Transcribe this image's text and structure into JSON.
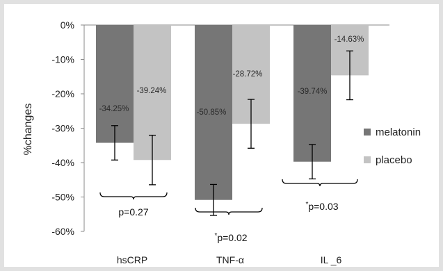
{
  "chart_data": {
    "type": "bar",
    "title": "",
    "xlabel": "",
    "ylabel": "%changes",
    "ylim": [
      -60,
      0
    ],
    "yticks": [
      0,
      -10,
      -20,
      -30,
      -40,
      -50,
      -60
    ],
    "ytick_labels": [
      "0%",
      "-10%",
      "-20%",
      "-30%",
      "-40%",
      "-50%",
      "-60%"
    ],
    "categories": [
      "hsCRP",
      "TNF-α",
      "IL _6"
    ],
    "series": [
      {
        "name": "melatonin",
        "color": "#767676",
        "values": [
          -34.25,
          -50.85,
          -39.74
        ],
        "labels": [
          "-34.25%",
          "-50.85%",
          "-39.74%"
        ],
        "error": [
          5,
          4.5,
          5
        ]
      },
      {
        "name": "placebo",
        "color": "#c3c3c3",
        "values": [
          -39.24,
          -28.72,
          -14.63
        ],
        "labels": [
          "-39.24%",
          "-28.72%",
          "-14.63%"
        ],
        "error": [
          7.2,
          7.1,
          7.1
        ]
      }
    ],
    "pvalues": [
      {
        "text": "p=0.27",
        "star": false
      },
      {
        "text": "p=0.02",
        "star": true
      },
      {
        "text": "p=0.03",
        "star": true
      }
    ],
    "legend_position": "right",
    "grid": false,
    "frame_color": "#e1e1e1"
  }
}
